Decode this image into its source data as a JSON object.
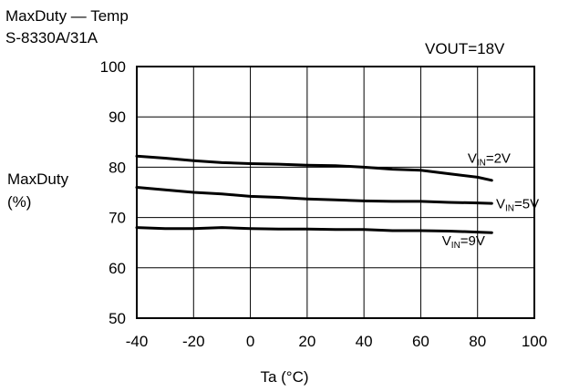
{
  "chart_data": {
    "type": "line",
    "title": "MaxDuty — Temp",
    "subtitle": "S-8330A/31A",
    "annotation": "VOUT=18V",
    "xlabel": "Ta (°C)",
    "ylabel": [
      "MaxDuty",
      "(%)"
    ],
    "xlim": [
      -40,
      100
    ],
    "ylim": [
      50,
      100
    ],
    "xticks": [
      -40,
      -20,
      0,
      20,
      40,
      60,
      80,
      100
    ],
    "yticks": [
      50,
      60,
      70,
      80,
      90,
      100
    ],
    "grid": true,
    "series": [
      {
        "name": "VIN=2V",
        "label_main": "V",
        "label_sub": "IN",
        "label_rest": "=2V",
        "x": [
          -40,
          -30,
          -20,
          -10,
          0,
          10,
          20,
          30,
          40,
          50,
          60,
          70,
          80,
          85
        ],
        "y": [
          82.2,
          81.8,
          81.3,
          80.9,
          80.7,
          80.6,
          80.4,
          80.3,
          80.0,
          79.6,
          79.4,
          78.7,
          78.0,
          77.4
        ]
      },
      {
        "name": "VIN=5V",
        "label_main": "V",
        "label_sub": "IN",
        "label_rest": "=5V",
        "x": [
          -40,
          -30,
          -20,
          -10,
          0,
          10,
          20,
          30,
          40,
          50,
          60,
          70,
          80,
          85
        ],
        "y": [
          76.0,
          75.5,
          75.0,
          74.7,
          74.2,
          74.0,
          73.7,
          73.5,
          73.3,
          73.2,
          73.2,
          73.0,
          72.9,
          72.8
        ]
      },
      {
        "name": "VIN=9V",
        "label_main": "V",
        "label_sub": "IN",
        "label_rest": "=9V",
        "x": [
          -40,
          -30,
          -20,
          -10,
          0,
          10,
          20,
          30,
          40,
          50,
          60,
          70,
          80,
          85
        ],
        "y": [
          68.0,
          67.8,
          67.8,
          68.0,
          67.8,
          67.7,
          67.7,
          67.6,
          67.6,
          67.4,
          67.4,
          67.3,
          67.1,
          67.0
        ]
      }
    ],
    "colors": {
      "line": "#000000",
      "grid": "#000000",
      "background": "#ffffff"
    }
  }
}
